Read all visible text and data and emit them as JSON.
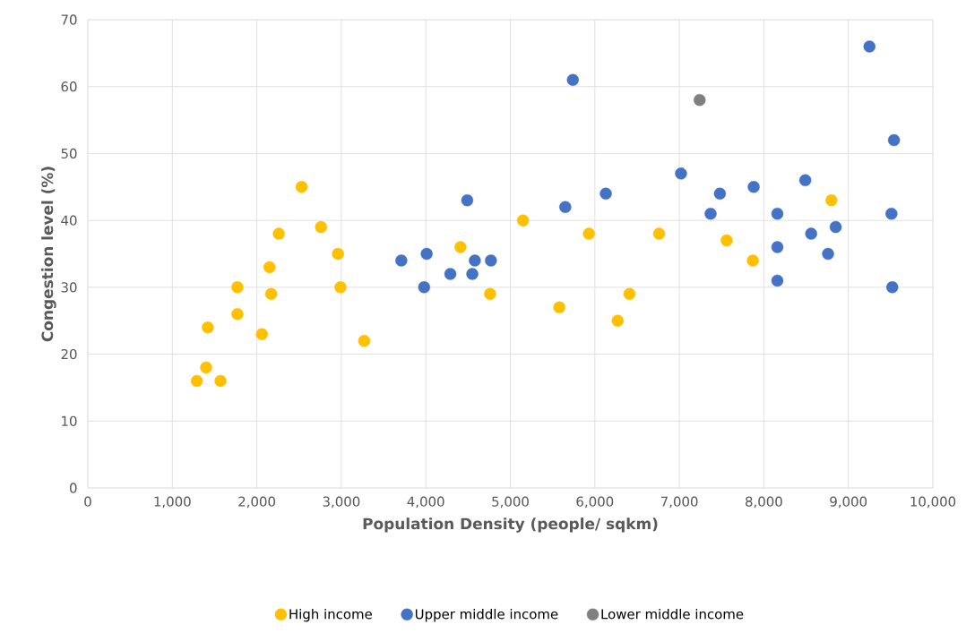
{
  "chart_data": {
    "type": "scatter",
    "xlabel": "Population Density (people/ sqkm)",
    "ylabel": "Congestion level (%)",
    "xlim": [
      0,
      10000
    ],
    "ylim": [
      0,
      70
    ],
    "xticks": [
      {
        "value": 0,
        "label": "0"
      },
      {
        "value": 1000,
        "label": "1,000"
      },
      {
        "value": 2000,
        "label": "2,000"
      },
      {
        "value": 3000,
        "label": "3,000"
      },
      {
        "value": 4000,
        "label": "4,000"
      },
      {
        "value": 5000,
        "label": "5,000"
      },
      {
        "value": 6000,
        "label": "6,000"
      },
      {
        "value": 7000,
        "label": "7,000"
      },
      {
        "value": 8000,
        "label": "8,000"
      },
      {
        "value": 9000,
        "label": "9,000"
      },
      {
        "value": 10000,
        "label": "10,000"
      }
    ],
    "yticks": [
      0,
      10,
      20,
      30,
      40,
      50,
      60,
      70
    ],
    "grid": true,
    "legend": "bottom",
    "marker": "circle",
    "series": [
      {
        "name": "High income",
        "color": "#ffc000",
        "x": [
          1290,
          1400,
          1420,
          1570,
          1770,
          1770,
          2060,
          2150,
          2170,
          2260,
          2530,
          2760,
          2960,
          2990,
          3270,
          4000,
          4410,
          4760,
          5150,
          5580,
          5930,
          6270,
          6410,
          6760,
          7560,
          7870,
          8800
        ],
        "values": [
          16,
          18,
          24,
          16,
          30,
          26,
          23,
          33,
          29,
          38,
          45,
          39,
          35,
          30,
          22,
          null,
          36,
          29,
          40,
          27,
          38,
          25,
          29,
          38,
          37,
          34,
          43
        ]
      },
      {
        "name": "Upper middle income",
        "color": "#4472c4",
        "x": [
          3710,
          3980,
          4010,
          4290,
          4490,
          4550,
          4580,
          4770,
          5650,
          5740,
          6130,
          7020,
          7370,
          7480,
          7880,
          8160,
          8160,
          8160,
          8490,
          8560,
          8760,
          8850,
          9250,
          9510,
          9520,
          9540
        ],
        "values": [
          34,
          30,
          35,
          32,
          43,
          32,
          34,
          34,
          42,
          61,
          44,
          47,
          41,
          44,
          45,
          41,
          36,
          31,
          46,
          38,
          35,
          39,
          66,
          41,
          30,
          52
        ]
      },
      {
        "name": "Lower middle income",
        "color": "#7f7f7f",
        "x": [
          7240
        ],
        "values": [
          58
        ]
      }
    ]
  }
}
